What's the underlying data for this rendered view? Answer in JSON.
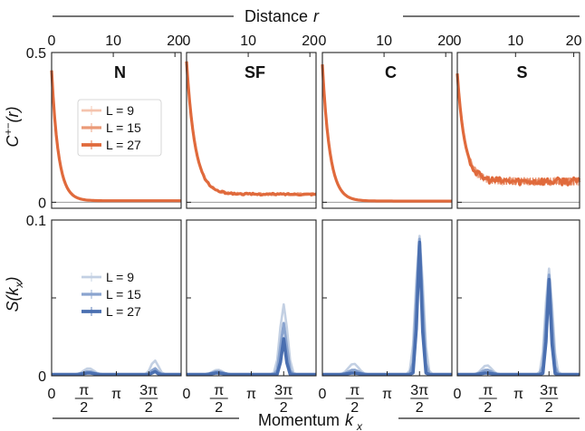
{
  "figure": {
    "top_axis_title": "Distance",
    "top_axis_var": "r",
    "bottom_axis_title": "Momentum",
    "bottom_axis_var": "k",
    "bottom_axis_sub": "x",
    "top_ylabel_main": "C",
    "top_ylabel_sup": "+−",
    "top_ylabel_tail": "(r)",
    "bottom_ylabel_main": "S(k",
    "bottom_ylabel_sub": "x",
    "bottom_ylabel_tail": ")"
  },
  "colors": {
    "orange": [
      "#f5c4ae",
      "#eb9a78",
      "#e06a3c"
    ],
    "blue": [
      "#c3d0e3",
      "#8aa4cf",
      "#4a6fb0"
    ]
  },
  "chart_data": [
    {
      "type": "line",
      "row": "top",
      "ylabel": "C+−(r)",
      "xlabel": "Distance r",
      "xlim": [
        0,
        21
      ],
      "ylim": [
        -0.02,
        0.5
      ],
      "xticks": [
        0,
        10,
        20
      ],
      "yticks": [
        0,
        0.5
      ],
      "ytick_labels": [
        "0",
        "0.5"
      ],
      "legend": [
        "L = 9",
        "L = 15",
        "L = 27"
      ],
      "panels": [
        {
          "title": "N",
          "tail": 0.005,
          "decay": 1.1,
          "peak": 0.44,
          "noise": 0.0
        },
        {
          "title": "SF",
          "tail": 0.027,
          "decay": 1.4,
          "peak": 0.47,
          "noise": 0.003
        },
        {
          "title": "C",
          "tail": 0.004,
          "decay": 1.2,
          "peak": 0.46,
          "noise": 0.0
        },
        {
          "title": "S",
          "tail": 0.07,
          "decay": 1.3,
          "peak": 0.43,
          "noise": 0.012
        }
      ]
    },
    {
      "type": "line",
      "row": "bottom",
      "ylabel": "S(k_x)",
      "xlabel": "Momentum k_x",
      "xlim": [
        0,
        6.2832
      ],
      "ylim": [
        0,
        0.1
      ],
      "xticks": [
        0,
        1.5708,
        3.1416,
        4.7124
      ],
      "xtick_labels": [
        "0",
        "π/2",
        "π",
        "3π/2"
      ],
      "yticks": [
        0,
        0.1
      ],
      "ytick_labels": [
        "0",
        "0.1"
      ],
      "legend": [
        "L = 9",
        "L = 15",
        "L = 27"
      ],
      "panels": [
        {
          "peak_k": 5.0,
          "peaks": [
            0.009,
            0.004,
            0.002
          ],
          "side": [
            0.004,
            0.002,
            0.001
          ]
        },
        {
          "peak_k": 4.71,
          "peaks": [
            0.045,
            0.033,
            0.023
          ],
          "side": [
            0.003,
            0.002,
            0.001
          ]
        },
        {
          "peak_k": 4.71,
          "peaks": [
            0.089,
            0.087,
            0.085
          ],
          "side": [
            0.007,
            0.003,
            0.001
          ]
        },
        {
          "peak_k": 4.71,
          "peaks": [
            0.068,
            0.064,
            0.061
          ],
          "side": [
            0.006,
            0.003,
            0.001
          ]
        }
      ]
    }
  ]
}
